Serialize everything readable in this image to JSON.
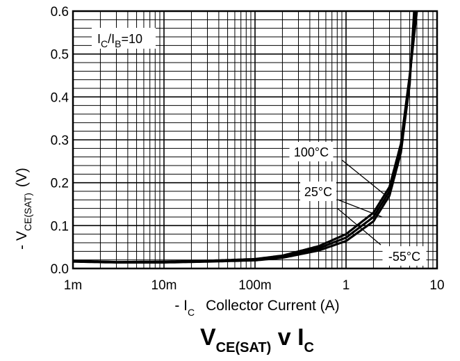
{
  "chart_data": {
    "type": "line",
    "title": {
      "main": "V",
      "main_sub": "CE(SAT)",
      "joiner": " v I",
      "joiner_sub": "C"
    },
    "xlabel": {
      "prefix": "- I",
      "sub": "C",
      "rest": "Collector Current (A)"
    },
    "ylabel": {
      "prefix": "- V",
      "sub": "CE(SAT)",
      "rest": "(V)"
    },
    "x_scale": "log",
    "xlim": [
      0.001,
      10
    ],
    "ylim": [
      0,
      0.6
    ],
    "grid": true,
    "x_ticks": [
      {
        "value": 0.001,
        "label": "1m"
      },
      {
        "value": 0.01,
        "label": "10m"
      },
      {
        "value": 0.1,
        "label": "100m"
      },
      {
        "value": 1,
        "label": "1"
      },
      {
        "value": 10,
        "label": "10"
      }
    ],
    "y_ticks": [
      {
        "value": 0.0,
        "label": "0.0"
      },
      {
        "value": 0.1,
        "label": "0.1"
      },
      {
        "value": 0.2,
        "label": "0.2"
      },
      {
        "value": 0.3,
        "label": "0.3"
      },
      {
        "value": 0.4,
        "label": "0.4"
      },
      {
        "value": 0.5,
        "label": "0.5"
      },
      {
        "value": 0.6,
        "label": "0.6"
      }
    ],
    "condition": {
      "i1": "I",
      "s1": "C",
      "slash": "/I",
      "s2": "B",
      "rest": "=10"
    },
    "series": [
      {
        "name": "100°C",
        "x": [
          0.001,
          0.003,
          0.01,
          0.03,
          0.1,
          0.2,
          0.5,
          1,
          2,
          3,
          4,
          5,
          6
        ],
        "y": [
          0.018,
          0.015,
          0.016,
          0.018,
          0.022,
          0.03,
          0.052,
          0.08,
          0.13,
          0.19,
          0.29,
          0.45,
          0.6
        ]
      },
      {
        "name": "25°C",
        "x": [
          0.001,
          0.003,
          0.01,
          0.03,
          0.1,
          0.2,
          0.5,
          1,
          2,
          3,
          4,
          5,
          5.8
        ],
        "y": [
          0.017,
          0.015,
          0.015,
          0.017,
          0.021,
          0.028,
          0.047,
          0.072,
          0.12,
          0.18,
          0.28,
          0.44,
          0.6
        ]
      },
      {
        "name": "-55°C",
        "x": [
          0.001,
          0.003,
          0.01,
          0.03,
          0.1,
          0.2,
          0.5,
          1,
          2,
          3,
          4,
          5,
          5.6
        ],
        "y": [
          0.016,
          0.014,
          0.014,
          0.016,
          0.019,
          0.025,
          0.042,
          0.064,
          0.11,
          0.17,
          0.27,
          0.43,
          0.6
        ]
      }
    ]
  }
}
